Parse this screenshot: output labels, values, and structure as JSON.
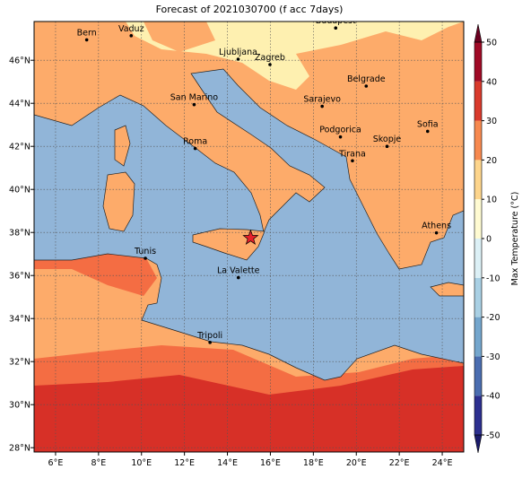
{
  "chart_data": {
    "type": "map",
    "title": "Forecast of 2021030700 (f acc 7days)",
    "xlim": [
      5,
      25
    ],
    "ylim": [
      27.8,
      47.8
    ],
    "xticks": [
      {
        "value": 6,
        "label": "6°E"
      },
      {
        "value": 8,
        "label": "8°E"
      },
      {
        "value": 10,
        "label": "10°E"
      },
      {
        "value": 12,
        "label": "12°E"
      },
      {
        "value": 14,
        "label": "14°E"
      },
      {
        "value": 16,
        "label": "16°E"
      },
      {
        "value": 18,
        "label": "18°E"
      },
      {
        "value": 20,
        "label": "20°E"
      },
      {
        "value": 22,
        "label": "22°E"
      },
      {
        "value": 24,
        "label": "24°E"
      }
    ],
    "yticks": [
      {
        "value": 28,
        "label": "28°N"
      },
      {
        "value": 30,
        "label": "30°N"
      },
      {
        "value": 32,
        "label": "32°N"
      },
      {
        "value": 34,
        "label": "34°N"
      },
      {
        "value": 36,
        "label": "36°N"
      },
      {
        "value": 38,
        "label": "38°N"
      },
      {
        "value": 40,
        "label": "40°N"
      },
      {
        "value": 42,
        "label": "42°N"
      },
      {
        "value": 44,
        "label": "44°N"
      },
      {
        "value": 46,
        "label": "46°N"
      }
    ],
    "grid": true,
    "cities": [
      {
        "name": "Bern",
        "lon": 7.45,
        "lat": 46.95
      },
      {
        "name": "Vaduz",
        "lon": 9.52,
        "lat": 47.14
      },
      {
        "name": "Budapest",
        "lon": 19.04,
        "lat": 47.5
      },
      {
        "name": "Ljubljana",
        "lon": 14.5,
        "lat": 46.05
      },
      {
        "name": "Zagreb",
        "lon": 15.98,
        "lat": 45.8
      },
      {
        "name": "Belgrade",
        "lon": 20.46,
        "lat": 44.8
      },
      {
        "name": "San Marino",
        "lon": 12.45,
        "lat": 43.94
      },
      {
        "name": "Sarajevo",
        "lon": 18.41,
        "lat": 43.86
      },
      {
        "name": "Sofia",
        "lon": 23.32,
        "lat": 42.7
      },
      {
        "name": "Roma",
        "lon": 12.5,
        "lat": 41.9
      },
      {
        "name": "Podgorica",
        "lon": 19.26,
        "lat": 42.44
      },
      {
        "name": "Skopje",
        "lon": 21.43,
        "lat": 42.0
      },
      {
        "name": "Tirana",
        "lon": 19.82,
        "lat": 41.33
      },
      {
        "name": "Athens",
        "lon": 23.73,
        "lat": 37.98
      },
      {
        "name": "Tunis",
        "lon": 10.18,
        "lat": 36.8
      },
      {
        "name": "La Valette",
        "lon": 14.51,
        "lat": 35.9
      },
      {
        "name": "Tripoli",
        "lon": 13.19,
        "lat": 32.89
      }
    ],
    "star": {
      "lon": 15.08,
      "lat": 37.75,
      "color": "#e8202a"
    },
    "colorbar": {
      "label": "Max Temperature (°C)",
      "lim": [
        -50,
        50
      ],
      "ticks": [
        -50,
        -40,
        -30,
        -20,
        -10,
        0,
        10,
        20,
        30,
        40,
        50
      ],
      "colors": [
        "#2c2f8f",
        "#4a6db0",
        "#74a6cd",
        "#a9d0e4",
        "#dcf0f6",
        "#fffbd2",
        "#fdd58c",
        "#f7894f",
        "#d93a2c",
        "#a00a26"
      ],
      "under_color": "#1b1b6b",
      "over_color": "#6b0020"
    }
  }
}
